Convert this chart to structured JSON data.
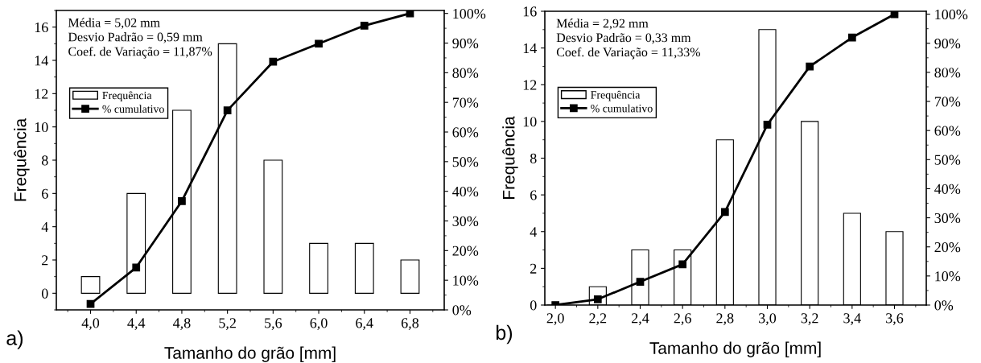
{
  "chart_data": [
    {
      "type": "bar",
      "x": [
        4.0,
        4.4,
        4.8,
        5.2,
        5.6,
        6.0,
        6.4,
        6.8
      ],
      "xlabel": "Tamanho do grão [mm]",
      "ylabel": "Frequência",
      "xlim": [
        3.7,
        7.1
      ],
      "xticks": [
        {
          "value": 4.0,
          "label": "4,0"
        },
        {
          "value": 4.4,
          "label": "4,4"
        },
        {
          "value": 4.8,
          "label": "4,8"
        },
        {
          "value": 5.2,
          "label": "5,2"
        },
        {
          "value": 5.6,
          "label": "5,6"
        },
        {
          "value": 6.0,
          "label": "6,0"
        },
        {
          "value": 6.4,
          "label": "6,4"
        },
        {
          "value": 6.8,
          "label": "6,8"
        }
      ],
      "ylim": [
        -1,
        17
      ],
      "yticks": [
        0,
        2,
        4,
        6,
        8,
        10,
        12,
        14,
        16
      ],
      "y2lim": [
        0,
        101
      ],
      "y2ticks": [
        {
          "value": 0,
          "label": "0%"
        },
        {
          "value": 10,
          "label": "10%"
        },
        {
          "value": 20,
          "label": "20%"
        },
        {
          "value": 30,
          "label": "30%"
        },
        {
          "value": 40,
          "label": "40%"
        },
        {
          "value": 50,
          "label": "50%"
        },
        {
          "value": 60,
          "label": "60%"
        },
        {
          "value": 70,
          "label": "70%"
        },
        {
          "value": 80,
          "label": "80%"
        },
        {
          "value": 90,
          "label": "90%"
        },
        {
          "value": 100,
          "label": "100%"
        }
      ],
      "legend": "top left",
      "grid": false,
      "series": [
        {
          "name": "Frequência",
          "color": "#ffffff",
          "values": [
            1,
            6,
            11,
            15,
            8,
            3,
            3,
            2
          ]
        },
        {
          "name": "% cumulativo",
          "type": "line",
          "axis": "y2",
          "color": "#000000",
          "marker": "square",
          "line_style": "solid",
          "values": [
            2.0,
            14.3,
            36.7,
            67.3,
            83.7,
            89.8,
            95.9,
            100
          ]
        }
      ],
      "annotations": [
        "Média = 5,02 mm\nDesvio Padrão = 0,59 mm\nCoef. de Variação = 11,87%",
        "a)"
      ]
    },
    {
      "type": "bar",
      "x": [
        2.0,
        2.2,
        2.4,
        2.6,
        2.8,
        3.0,
        3.2,
        3.4,
        3.6
      ],
      "xlabel": "Tamanho do grão [mm]",
      "ylabel": "Frequência",
      "xlim": [
        1.95,
        3.75
      ],
      "xticks": [
        {
          "value": 2.0,
          "label": "2,0"
        },
        {
          "value": 2.2,
          "label": "2,2"
        },
        {
          "value": 2.4,
          "label": "2,4"
        },
        {
          "value": 2.6,
          "label": "2,6"
        },
        {
          "value": 2.8,
          "label": "2,8"
        },
        {
          "value": 3.0,
          "label": "3,0"
        },
        {
          "value": 3.2,
          "label": "3,2"
        },
        {
          "value": 3.4,
          "label": "3,4"
        },
        {
          "value": 3.6,
          "label": "3,6"
        }
      ],
      "ylim": [
        0,
        16
      ],
      "yticks": [
        0,
        2,
        4,
        6,
        8,
        10,
        12,
        14,
        16
      ],
      "y2lim": [
        0,
        101
      ],
      "y2ticks": [
        {
          "value": 0,
          "label": "0%"
        },
        {
          "value": 10,
          "label": "10%"
        },
        {
          "value": 20,
          "label": "20%"
        },
        {
          "value": 30,
          "label": "30%"
        },
        {
          "value": 40,
          "label": "40%"
        },
        {
          "value": 50,
          "label": "50%"
        },
        {
          "value": 60,
          "label": "60%"
        },
        {
          "value": 70,
          "label": "70%"
        },
        {
          "value": 80,
          "label": "80%"
        },
        {
          "value": 90,
          "label": "90%"
        },
        {
          "value": 100,
          "label": "100%"
        }
      ],
      "legend": "top left",
      "grid": false,
      "series": [
        {
          "name": "Frequência",
          "color": "#ffffff",
          "values": [
            0,
            1,
            3,
            3,
            9,
            15,
            10,
            5,
            4
          ]
        },
        {
          "name": "% cumulativo",
          "type": "line",
          "axis": "y2",
          "color": "#000000",
          "marker": "square",
          "line_style": "solid",
          "values": [
            0,
            2,
            8,
            14,
            32,
            62,
            82,
            92,
            100
          ]
        }
      ],
      "annotations": [
        "Média = 2,92 mm\nDesvio Padrão = 0,33 mm\nCoef. de Variação = 11,33%",
        "b)"
      ]
    }
  ]
}
